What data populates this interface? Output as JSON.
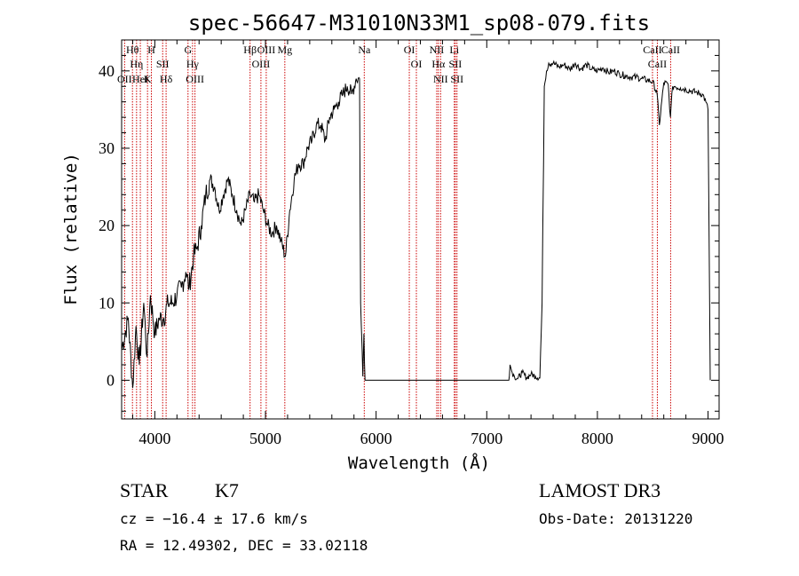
{
  "chart_data": {
    "type": "line",
    "title": "spec-56647-M31010N33M1_sp08-079.fits",
    "xlabel": "Wavelength (Å)",
    "ylabel": "Flux (relative)",
    "xlim": [
      3700,
      9100
    ],
    "ylim": [
      -5,
      44
    ],
    "x_ticks": [
      4000,
      5000,
      6000,
      7000,
      8000,
      9000
    ],
    "y_ticks": [
      0,
      10,
      20,
      30,
      40
    ],
    "grid": false,
    "series": [
      {
        "x": [
          3700,
          3760,
          3800,
          3830,
          3860,
          3900,
          3930,
          3960,
          4000,
          4040,
          4080,
          4120,
          4160,
          4200,
          4240,
          4280,
          4310,
          4350,
          4380,
          4420,
          4460,
          4500,
          4540,
          4580,
          4620,
          4660,
          4700,
          4740,
          4780,
          4820,
          4860,
          4900,
          4940,
          4980,
          5020,
          5060,
          5100,
          5140,
          5180,
          5220,
          5260,
          5300,
          5340,
          5380,
          5420,
          5460,
          5500,
          5540,
          5580,
          5620,
          5660,
          5700,
          5740,
          5780,
          5820,
          5850,
          5860,
          5880,
          5890,
          5900,
          5910,
          5920,
          6000,
          6500,
          7000,
          7200,
          7210,
          7230,
          7250,
          7280,
          7320,
          7360,
          7400,
          7440,
          7480,
          7500,
          7520,
          7540,
          7560,
          7600,
          7650,
          7700,
          7750,
          7800,
          7850,
          7900,
          7950,
          8000,
          8050,
          8100,
          8150,
          8200,
          8250,
          8300,
          8350,
          8400,
          8450,
          8500,
          8540,
          8560,
          8600,
          8640,
          8660,
          8680,
          8700,
          8750,
          8800,
          8850,
          8900,
          8950,
          8980,
          9000,
          9020
        ],
        "y": [
          4,
          8,
          -1,
          7,
          2,
          10,
          3,
          11,
          6,
          8,
          8,
          10,
          10,
          11,
          12,
          14,
          12,
          16,
          17,
          20,
          24,
          26,
          25,
          22,
          24,
          26,
          24,
          22,
          20,
          22,
          24,
          23,
          24,
          22,
          20,
          19,
          20,
          18,
          16,
          22,
          26,
          28,
          28,
          30,
          31,
          33,
          33,
          31,
          34,
          35,
          36,
          37,
          38,
          37,
          39,
          39,
          10,
          0.5,
          6,
          0,
          0,
          0,
          0,
          0,
          0,
          0,
          2,
          1,
          0.5,
          0.2,
          1,
          0.3,
          0.8,
          0.5,
          0.3,
          10,
          38,
          40,
          41,
          41,
          40.5,
          40.8,
          40.2,
          41,
          40.2,
          40.8,
          40.2,
          40,
          40.4,
          39.8,
          40,
          39.6,
          39.4,
          39.2,
          39.2,
          39,
          38.8,
          38.6,
          37,
          33,
          38.5,
          38.2,
          34,
          38,
          38,
          37.8,
          37.6,
          37.4,
          37.2,
          37,
          36,
          35,
          0
        ]
      }
    ],
    "line_markers": [
      {
        "x": 3798,
        "label": "Hθ"
      },
      {
        "x": 3835,
        "label": "Hη"
      },
      {
        "x": 3727,
        "label": "OII"
      },
      {
        "x": 3869,
        "label": "HeI"
      },
      {
        "x": 3934,
        "label": "K"
      },
      {
        "x": 3969,
        "label": "H"
      },
      {
        "x": 4071,
        "label": "SII"
      },
      {
        "x": 4102,
        "label": "Hδ"
      },
      {
        "x": 4300,
        "label": "G"
      },
      {
        "x": 4341,
        "label": "Hγ"
      },
      {
        "x": 4363,
        "label": "OIII"
      },
      {
        "x": 4861,
        "label": "Hβ"
      },
      {
        "x": 4959,
        "label": "OIII"
      },
      {
        "x": 5007,
        "label": "OIII"
      },
      {
        "x": 5175,
        "label": "Mg"
      },
      {
        "x": 5893,
        "label": "Na"
      },
      {
        "x": 6300,
        "label": "OI"
      },
      {
        "x": 6364,
        "label": "OI"
      },
      {
        "x": 6548,
        "label": "NII"
      },
      {
        "x": 6563,
        "label": "Hα"
      },
      {
        "x": 6583,
        "label": "NII"
      },
      {
        "x": 6707,
        "label": "Li"
      },
      {
        "x": 6716,
        "label": "SII"
      },
      {
        "x": 6731,
        "label": "SII"
      },
      {
        "x": 8498,
        "label": "CaII"
      },
      {
        "x": 8542,
        "label": "CaII"
      },
      {
        "x": 8662,
        "label": "CaII"
      }
    ],
    "marker_color": "#cc0000",
    "line_color": "#000000"
  },
  "info": {
    "class": "STAR",
    "subclass": "K7",
    "survey": "LAMOST DR3",
    "cz": "cz = −16.4 ± 17.6 km/s",
    "obs_date": "Obs-Date: 20131220",
    "radec": "RA =  12.49302, DEC =  33.02118"
  }
}
